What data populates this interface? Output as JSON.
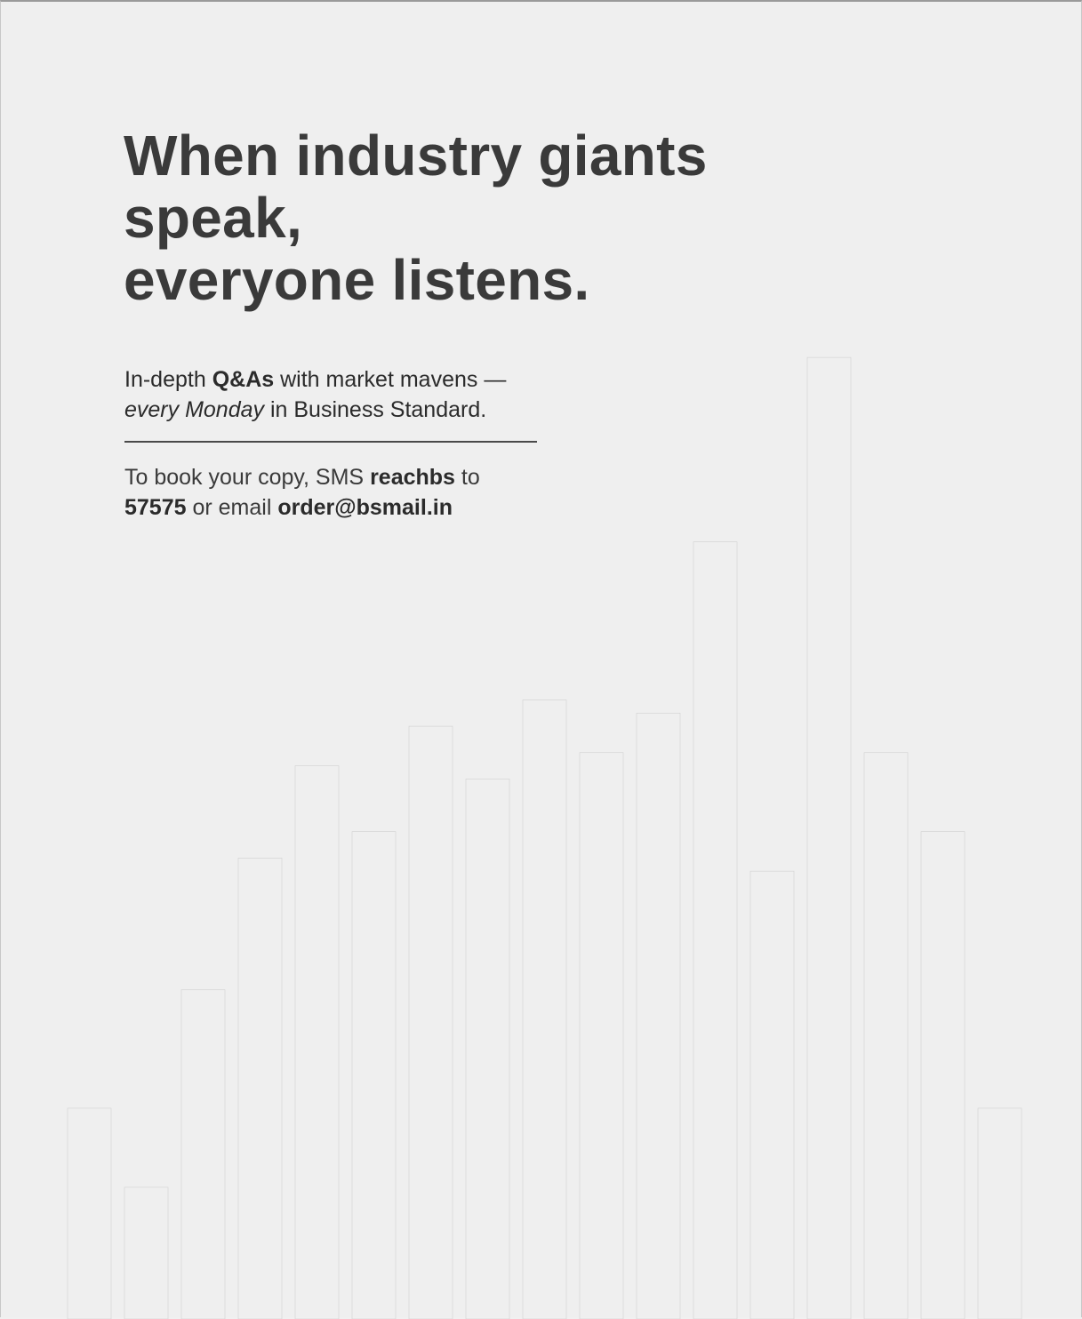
{
  "headline": {
    "line1": "When industry giants",
    "line2": "speak,",
    "line3": "everyone listens."
  },
  "subcopy": {
    "part1": "In-depth ",
    "bold1": "Q&As",
    "part2": " with market mavens —",
    "italic1": "every Monday",
    "part3": " in Business Standard."
  },
  "booking": {
    "part1": "To book your copy, SMS ",
    "sms_keyword": "reachbs",
    "part2": " to",
    "sms_number": "57575",
    "part3": " or email ",
    "email": "order@bsmail.in"
  },
  "bar_levels": [
    0.16,
    0.1,
    0.25,
    0.35,
    0.42,
    0.37,
    0.45,
    0.41,
    0.47,
    0.43,
    0.46,
    0.59,
    0.34,
    0.73,
    0.43,
    0.37,
    0.16
  ],
  "colors": {
    "background": "#efefef",
    "headline": "#3a3a3a",
    "body_text": "#2b2b2b"
  }
}
